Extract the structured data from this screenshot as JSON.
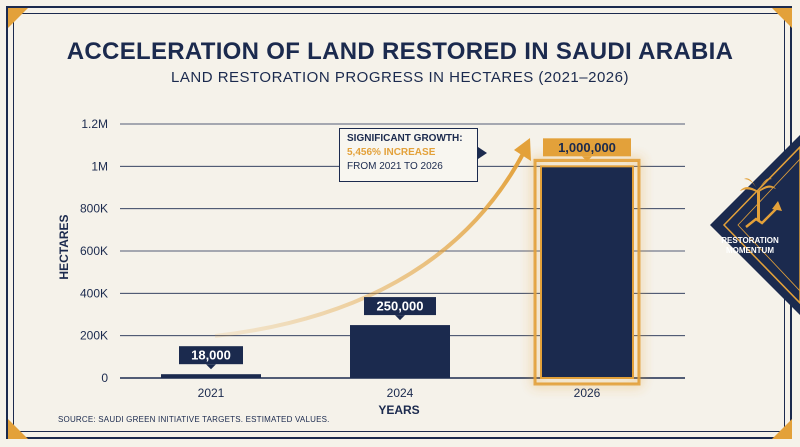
{
  "title": "ACCELERATION OF LAND RESTORED IN SAUDI ARABIA",
  "subtitle": "LAND RESTORATION PROGRESS IN HECTARES (2021–2026)",
  "source": "SOURCE: SAUDI GREEN INITIATIVE TARGETS. ESTIMATED VALUES.",
  "annotation": {
    "line1": "SIGNIFICANT GROWTH:",
    "line2": "5,456% INCREASE",
    "line3": "FROM 2021 TO 2026"
  },
  "side_badge": {
    "label_line1": "RESTORATION",
    "label_line2": "MOMENTUM",
    "icon": "palm-tree-growth-icon"
  },
  "colors": {
    "navy": "#1b2a4e",
    "gold": "#e3a13a",
    "background": "#f5f2ea"
  },
  "chart_data": {
    "type": "bar",
    "categories": [
      "2021",
      "2024",
      "2026"
    ],
    "values": [
      18000,
      250000,
      1000000
    ],
    "value_labels": [
      "18,000",
      "250,000",
      "1,000,000"
    ],
    "xlabel": "YEARS",
    "ylabel": "HECTARES",
    "ylim": [
      0,
      1200000
    ],
    "yticks": [
      0,
      200000,
      400000,
      600000,
      800000,
      1000000,
      1200000
    ],
    "ytick_labels": [
      "0",
      "200K",
      "400K",
      "600K",
      "800K",
      "1M",
      "1.2M"
    ],
    "grid": true,
    "highlight_category": "2026"
  }
}
